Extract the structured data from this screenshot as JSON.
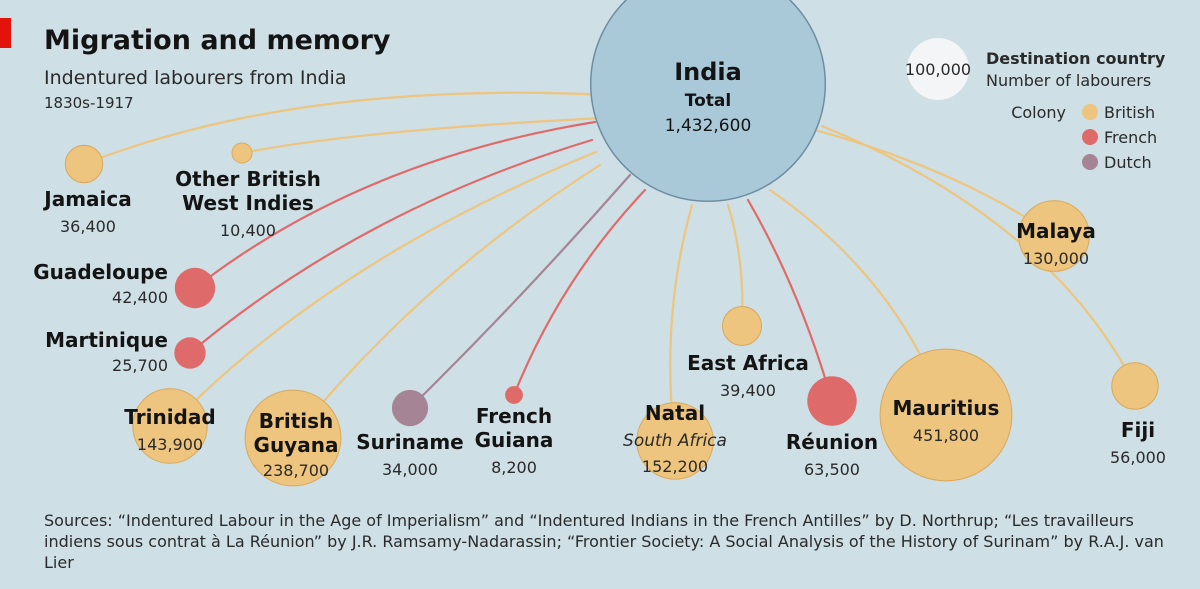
{
  "header": {
    "title": "Migration and memory",
    "subtitle": "Indentured labourers from India",
    "period": "1830s-1917"
  },
  "colors": {
    "british": "#edc57f",
    "french": "#df6a6a",
    "dutch": "#a58496",
    "india": "#a9c8d8",
    "legend_white": "#f3f5f6",
    "accent": "#e3120b"
  },
  "hub": {
    "name": "India",
    "label": "Total",
    "value": "1,432,600",
    "count": 1432600
  },
  "destinations": [
    {
      "id": "jamaica",
      "name": "Jamaica",
      "value": "36,400",
      "count": 36400,
      "colony": "british"
    },
    {
      "id": "other-british-west-indies",
      "name": "Other British",
      "name2": "West Indies",
      "value": "10,400",
      "count": 10400,
      "colony": "british"
    },
    {
      "id": "guadeloupe",
      "name": "Guadeloupe",
      "value": "42,400",
      "count": 42400,
      "colony": "french"
    },
    {
      "id": "martinique",
      "name": "Martinique",
      "value": "25,700",
      "count": 25700,
      "colony": "french"
    },
    {
      "id": "trinidad",
      "name": "Trinidad",
      "value": "143,900",
      "count": 143900,
      "colony": "british"
    },
    {
      "id": "british-guyana",
      "name": "British",
      "name2": "Guyana",
      "value": "238,700",
      "count": 238700,
      "colony": "british"
    },
    {
      "id": "suriname",
      "name": "Suriname",
      "value": "34,000",
      "count": 34000,
      "colony": "dutch"
    },
    {
      "id": "french-guiana",
      "name": "French",
      "name2": "Guiana",
      "value": "8,200",
      "count": 8200,
      "colony": "french"
    },
    {
      "id": "natal",
      "name": "Natal",
      "note": "South Africa",
      "value": "152,200",
      "count": 152200,
      "colony": "british"
    },
    {
      "id": "east-africa",
      "name": "East Africa",
      "value": "39,400",
      "count": 39400,
      "colony": "british"
    },
    {
      "id": "reunion",
      "name": "Réunion",
      "value": "63,500",
      "count": 63500,
      "colony": "french"
    },
    {
      "id": "mauritius",
      "name": "Mauritius",
      "value": "451,800",
      "count": 451800,
      "colony": "british"
    },
    {
      "id": "malaya",
      "name": "Malaya",
      "value": "130,000",
      "count": 130000,
      "colony": "british"
    },
    {
      "id": "fiji",
      "name": "Fiji",
      "value": "56,000",
      "count": 56000,
      "colony": "british"
    }
  ],
  "legend": {
    "size_value": "100,000",
    "size_count": 100000,
    "size_title": "Destination country",
    "size_subtitle": "Number of labourers",
    "colony_label": "Colony",
    "colonies": [
      {
        "id": "british",
        "label": "British"
      },
      {
        "id": "french",
        "label": "French"
      },
      {
        "id": "dutch",
        "label": "Dutch"
      }
    ]
  },
  "sources": "Sources: “Indentured Labour in the Age of Imperialism” and “Indentured Indians in the French Antilles” by D. Northrup; “Les travailleurs indiens sous contrat à La Réunion” by J.R. Ramsamy-Nadarassin; “Frontier Society: A Social Analysis of the History of Surinam” by R.A.J. van Lier"
}
